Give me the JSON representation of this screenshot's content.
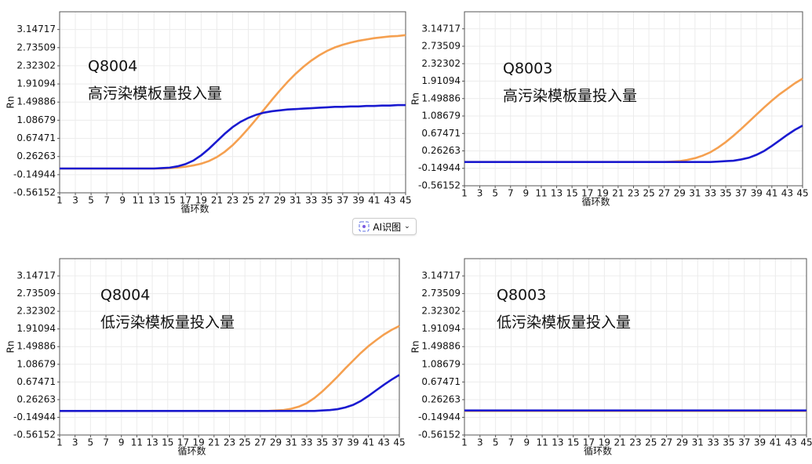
{
  "chart_data": [
    {
      "type": "line",
      "annotations": [
        "Q8004",
        "高污染模板量投入量"
      ],
      "xlabel": "循环数",
      "ylabel": "Rn",
      "x": [
        1,
        2,
        3,
        4,
        5,
        6,
        7,
        8,
        9,
        10,
        11,
        12,
        13,
        14,
        15,
        16,
        17,
        18,
        19,
        20,
        21,
        22,
        23,
        24,
        25,
        26,
        27,
        28,
        29,
        30,
        31,
        32,
        33,
        34,
        35,
        36,
        37,
        38,
        39,
        40,
        41,
        42,
        43,
        44,
        45
      ],
      "xlim": [
        1,
        45
      ],
      "xticks": [
        1,
        3,
        5,
        7,
        9,
        11,
        13,
        15,
        17,
        19,
        21,
        23,
        25,
        27,
        29,
        31,
        33,
        35,
        37,
        39,
        41,
        43,
        45
      ],
      "ylim": [
        -0.56152,
        3.55
      ],
      "yticks": [
        -0.56152,
        -0.14944,
        0.26263,
        0.67471,
        1.08679,
        1.49886,
        1.91094,
        2.32302,
        2.73509,
        3.14717
      ],
      "grid": true,
      "series": [
        {
          "color": "#f5a050",
          "values": [
            -0.01,
            -0.01,
            -0.01,
            -0.01,
            -0.01,
            -0.01,
            -0.01,
            -0.01,
            -0.01,
            -0.01,
            -0.01,
            -0.01,
            -0.01,
            -0.01,
            0.0,
            0.01,
            0.03,
            0.06,
            0.1,
            0.16,
            0.25,
            0.37,
            0.52,
            0.7,
            0.9,
            1.11,
            1.33,
            1.55,
            1.76,
            1.96,
            2.14,
            2.3,
            2.44,
            2.56,
            2.66,
            2.74,
            2.8,
            2.85,
            2.89,
            2.92,
            2.95,
            2.97,
            2.99,
            3.0,
            3.02
          ]
        },
        {
          "color": "#1a1ad0",
          "values": [
            -0.01,
            -0.01,
            -0.01,
            -0.01,
            -0.01,
            -0.01,
            -0.01,
            -0.01,
            -0.01,
            -0.01,
            -0.01,
            -0.01,
            -0.01,
            0.0,
            0.01,
            0.04,
            0.09,
            0.17,
            0.29,
            0.44,
            0.61,
            0.78,
            0.93,
            1.05,
            1.14,
            1.21,
            1.26,
            1.29,
            1.31,
            1.33,
            1.34,
            1.35,
            1.36,
            1.37,
            1.38,
            1.39,
            1.39,
            1.4,
            1.4,
            1.41,
            1.41,
            1.42,
            1.42,
            1.43,
            1.43
          ]
        }
      ]
    },
    {
      "type": "line",
      "annotations": [
        "Q8003",
        "高污染模板量投入量"
      ],
      "xlabel": "循环数",
      "ylabel": "Rn",
      "x": [
        1,
        2,
        3,
        4,
        5,
        6,
        7,
        8,
        9,
        10,
        11,
        12,
        13,
        14,
        15,
        16,
        17,
        18,
        19,
        20,
        21,
        22,
        23,
        24,
        25,
        26,
        27,
        28,
        29,
        30,
        31,
        32,
        33,
        34,
        35,
        36,
        37,
        38,
        39,
        40,
        41,
        42,
        43,
        44,
        45
      ],
      "xlim": [
        1,
        45
      ],
      "xticks": [
        1,
        3,
        5,
        7,
        9,
        11,
        13,
        15,
        17,
        19,
        21,
        23,
        25,
        27,
        29,
        31,
        33,
        35,
        37,
        39,
        41,
        43,
        45
      ],
      "ylim": [
        -0.56152,
        3.55
      ],
      "yticks": [
        -0.56152,
        -0.14944,
        0.26263,
        0.67471,
        1.08679,
        1.49886,
        1.91094,
        2.32302,
        2.73509,
        3.14717
      ],
      "grid": true,
      "series": [
        {
          "color": "#f5a050",
          "values": [
            0.0,
            0.0,
            0.0,
            0.0,
            0.0,
            0.0,
            0.0,
            0.0,
            0.0,
            0.0,
            0.0,
            0.0,
            0.0,
            0.0,
            0.0,
            0.0,
            0.0,
            0.0,
            0.0,
            0.0,
            0.0,
            0.0,
            0.0,
            0.0,
            0.0,
            0.0,
            0.0,
            0.01,
            0.02,
            0.05,
            0.09,
            0.15,
            0.23,
            0.34,
            0.47,
            0.62,
            0.78,
            0.95,
            1.12,
            1.29,
            1.45,
            1.6,
            1.73,
            1.86,
            1.97
          ]
        },
        {
          "color": "#1a1ad0",
          "values": [
            0.0,
            0.0,
            0.0,
            0.0,
            0.0,
            0.0,
            0.0,
            0.0,
            0.0,
            0.0,
            0.0,
            0.0,
            0.0,
            0.0,
            0.0,
            0.0,
            0.0,
            0.0,
            0.0,
            0.0,
            0.0,
            0.0,
            0.0,
            0.0,
            0.0,
            0.0,
            0.0,
            0.0,
            0.0,
            0.0,
            0.0,
            0.0,
            0.0,
            0.01,
            0.02,
            0.03,
            0.06,
            0.1,
            0.17,
            0.26,
            0.38,
            0.51,
            0.64,
            0.76,
            0.86
          ]
        }
      ]
    },
    {
      "type": "line",
      "annotations": [
        "Q8004",
        "低污染模板量投入量"
      ],
      "xlabel": "循环数",
      "ylabel": "Rn",
      "x": [
        1,
        2,
        3,
        4,
        5,
        6,
        7,
        8,
        9,
        10,
        11,
        12,
        13,
        14,
        15,
        16,
        17,
        18,
        19,
        20,
        21,
        22,
        23,
        24,
        25,
        26,
        27,
        28,
        29,
        30,
        31,
        32,
        33,
        34,
        35,
        36,
        37,
        38,
        39,
        40,
        41,
        42,
        43,
        44,
        45
      ],
      "xlim": [
        1,
        45
      ],
      "xticks": [
        1,
        3,
        5,
        7,
        9,
        11,
        13,
        15,
        17,
        19,
        21,
        23,
        25,
        27,
        29,
        31,
        33,
        35,
        37,
        39,
        41,
        43,
        45
      ],
      "ylim": [
        -0.56152,
        3.55
      ],
      "yticks": [
        -0.56152,
        -0.14944,
        0.26263,
        0.67471,
        1.08679,
        1.49886,
        1.91094,
        2.32302,
        2.73509,
        3.14717
      ],
      "grid": true,
      "series": [
        {
          "color": "#f5a050",
          "values": [
            0.0,
            0.0,
            0.0,
            0.0,
            0.0,
            0.0,
            0.0,
            0.0,
            0.0,
            0.0,
            0.0,
            0.0,
            0.0,
            0.0,
            0.0,
            0.0,
            0.0,
            0.0,
            0.0,
            0.0,
            0.0,
            0.0,
            0.0,
            0.0,
            0.0,
            0.0,
            0.0,
            0.0,
            0.01,
            0.02,
            0.05,
            0.1,
            0.18,
            0.3,
            0.45,
            0.62,
            0.8,
            0.99,
            1.17,
            1.35,
            1.51,
            1.65,
            1.78,
            1.89,
            1.98
          ]
        },
        {
          "color": "#1a1ad0",
          "values": [
            0.0,
            0.0,
            0.0,
            0.0,
            0.0,
            0.0,
            0.0,
            0.0,
            0.0,
            0.0,
            0.0,
            0.0,
            0.0,
            0.0,
            0.0,
            0.0,
            0.0,
            0.0,
            0.0,
            0.0,
            0.0,
            0.0,
            0.0,
            0.0,
            0.0,
            0.0,
            0.0,
            0.0,
            0.0,
            0.0,
            0.0,
            0.0,
            0.0,
            0.0,
            0.01,
            0.02,
            0.04,
            0.08,
            0.14,
            0.23,
            0.35,
            0.48,
            0.61,
            0.73,
            0.84
          ]
        }
      ]
    },
    {
      "type": "line",
      "annotations": [
        "Q8003",
        "低污染模板量投入量"
      ],
      "xlabel": "循环数",
      "ylabel": "Rn",
      "x": [
        1,
        2,
        3,
        4,
        5,
        6,
        7,
        8,
        9,
        10,
        11,
        12,
        13,
        14,
        15,
        16,
        17,
        18,
        19,
        20,
        21,
        22,
        23,
        24,
        25,
        26,
        27,
        28,
        29,
        30,
        31,
        32,
        33,
        34,
        35,
        36,
        37,
        38,
        39,
        40,
        41,
        42,
        43,
        44,
        45
      ],
      "xlim": [
        1,
        45
      ],
      "xticks": [
        1,
        3,
        5,
        7,
        9,
        11,
        13,
        15,
        17,
        19,
        21,
        23,
        25,
        27,
        29,
        31,
        33,
        35,
        37,
        39,
        41,
        43,
        45
      ],
      "ylim": [
        -0.56152,
        3.55
      ],
      "yticks": [
        -0.56152,
        -0.14944,
        0.26263,
        0.67471,
        1.08679,
        1.49886,
        1.91094,
        2.32302,
        2.73509,
        3.14717
      ],
      "grid": true,
      "series": [
        {
          "color": "#f5a050",
          "values": [
            0.0,
            0.0,
            0.0,
            0.0,
            0.0,
            0.0,
            0.0,
            0.0,
            0.0,
            0.0,
            0.0,
            0.0,
            0.0,
            0.0,
            0.0,
            0.0,
            0.0,
            0.0,
            0.0,
            0.0,
            0.0,
            0.0,
            0.0,
            0.0,
            0.0,
            0.0,
            0.0,
            0.0,
            0.0,
            0.0,
            0.0,
            0.0,
            0.0,
            0.0,
            0.0,
            0.0,
            0.0,
            0.0,
            0.0,
            0.0,
            0.0,
            0.0,
            0.0,
            0.0,
            0.0
          ]
        },
        {
          "color": "#1a1ad0",
          "values": [
            0.01,
            0.01,
            0.01,
            0.01,
            0.01,
            0.01,
            0.01,
            0.01,
            0.01,
            0.01,
            0.01,
            0.01,
            0.01,
            0.01,
            0.01,
            0.01,
            0.01,
            0.01,
            0.01,
            0.01,
            0.01,
            0.01,
            0.01,
            0.01,
            0.01,
            0.01,
            0.01,
            0.01,
            0.01,
            0.01,
            0.01,
            0.01,
            0.01,
            0.01,
            0.01,
            0.01,
            0.01,
            0.01,
            0.01,
            0.01,
            0.01,
            0.01,
            0.01,
            0.01,
            0.01
          ]
        }
      ]
    }
  ],
  "ui_button": {
    "label": "AI识图"
  }
}
